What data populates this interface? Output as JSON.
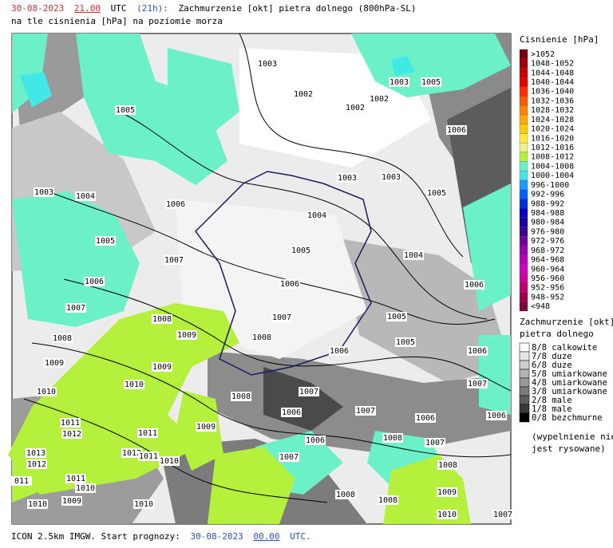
{
  "header": {
    "date": "30-08-2023",
    "hour": "21.00",
    "tz": "UTC",
    "lead": "(21h):",
    "title": "Zachmurzenie [okt] pietra dolnego (800hPa-SL)",
    "subtitle": "na tle cisnienia [hPa] na poziomie morza"
  },
  "footer": {
    "model": "ICON 2.5km IMGW. Start prognozy:",
    "date": "30-08-2023",
    "hour": "00.00",
    "tz": "UTC."
  },
  "pressure_legend": {
    "title": "Cisnienie [hPa]",
    "items": [
      {
        "label": ">1052",
        "color": "#7a0010"
      },
      {
        "label": "1048-1052",
        "color": "#a00000"
      },
      {
        "label": "1044-1048",
        "color": "#c80000"
      },
      {
        "label": "1040-1044",
        "color": "#e80000"
      },
      {
        "label": "1036-1040",
        "color": "#ff2a00"
      },
      {
        "label": "1032-1036",
        "color": "#ff5a00"
      },
      {
        "label": "1028-1032",
        "color": "#ff8400"
      },
      {
        "label": "1024-1028",
        "color": "#ffa800"
      },
      {
        "label": "1020-1024",
        "color": "#ffcc00"
      },
      {
        "label": "1016-1020",
        "color": "#ffe840"
      },
      {
        "label": "1012-1016",
        "color": "#f0f08c"
      },
      {
        "label": "1008-1012",
        "color": "#b4f03c"
      },
      {
        "label": "1004-1008",
        "color": "#6cf0c8"
      },
      {
        "label": "1000-1004",
        "color": "#40e8e8"
      },
      {
        "label": "996-1000",
        "color": "#2098ff"
      },
      {
        "label": "992-996",
        "color": "#0060ff"
      },
      {
        "label": "988-992",
        "color": "#0030e0"
      },
      {
        "label": "984-988",
        "color": "#0000c8"
      },
      {
        "label": "980-984",
        "color": "#1a00a0"
      },
      {
        "label": "976-980",
        "color": "#400090"
      },
      {
        "label": "972-976",
        "color": "#7000a0"
      },
      {
        "label": "968-972",
        "color": "#9800b0"
      },
      {
        "label": "964-968",
        "color": "#b800b8"
      },
      {
        "label": "960-964",
        "color": "#d000c0"
      },
      {
        "label": "956-960",
        "color": "#d00098"
      },
      {
        "label": "952-956",
        "color": "#c00070"
      },
      {
        "label": "948-952",
        "color": "#a00050"
      },
      {
        "label": "<948",
        "color": "#800040"
      }
    ]
  },
  "cloud_legend": {
    "title": "Zachmurzenie [okt]",
    "subtitle": "pietra dolnego",
    "items": [
      {
        "label": "8/8 calkowite",
        "color": "#ffffff"
      },
      {
        "label": "7/8 duze",
        "color": "#e6e6e6"
      },
      {
        "label": "6/8 duze",
        "color": "#cccccc"
      },
      {
        "label": "5/8 umiarkowane",
        "color": "#b3b3b3"
      },
      {
        "label": "4/8 umiarkowane",
        "color": "#999999"
      },
      {
        "label": "3/8 umiarkowane",
        "color": "#7a7a7a"
      },
      {
        "label": "2/8 male",
        "color": "#5c5c5c"
      },
      {
        "label": "1/8 male",
        "color": "#3a3a3a"
      },
      {
        "label": "0/8 bezchmurne",
        "color": "#000000"
      }
    ],
    "note_1": "(wypelnienie nie",
    "note_2": "jest rysowane)"
  },
  "isobar_labels": [
    "1003",
    "1002",
    "1002",
    "1002",
    "1003",
    "1005",
    "1005",
    "1006",
    "1003",
    "1004",
    "1006",
    "1003",
    "1003",
    "1005",
    "1004",
    "1005",
    "1005",
    "1004",
    "1007",
    "1006",
    "1006",
    "1006",
    "1007",
    "1007",
    "1005",
    "1008",
    "1009",
    "1008",
    "1008",
    "1005",
    "1006",
    "1006",
    "1009",
    "1009",
    "1010",
    "1007",
    "1010",
    "1008",
    "1007",
    "1006",
    "1007",
    "1006",
    "1006",
    "1011",
    "1012",
    "1011",
    "1009",
    "1006",
    "1008",
    "1007",
    "1013",
    "1012",
    "1011",
    "1007",
    "1012",
    "1010",
    "1008",
    "011",
    "1011",
    "1010",
    "1009",
    "1008",
    "1008",
    "1010",
    "1009",
    "1010",
    "1010",
    "1007"
  ]
}
